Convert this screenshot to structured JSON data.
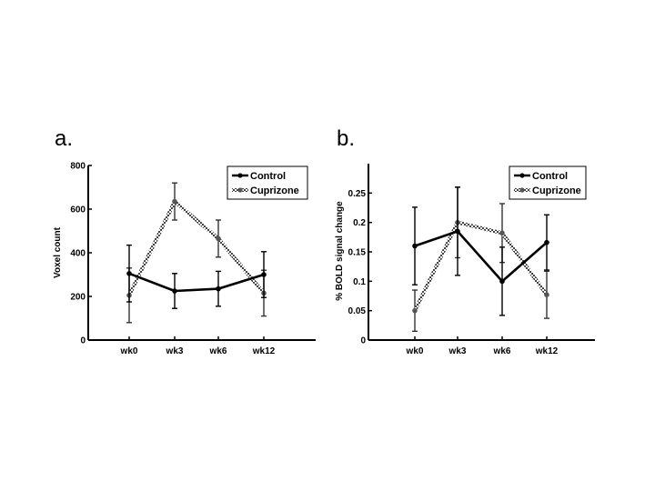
{
  "chart_data": [
    {
      "panel_label": "a.",
      "type": "line",
      "categories": [
        "wk0",
        "wk3",
        "wk6",
        "wk12"
      ],
      "ylabel": "Voxel count",
      "xlabel": "",
      "ylim": [
        0,
        800
      ],
      "yticks": [
        0,
        200,
        400,
        600,
        800
      ],
      "ytick_labels": [
        "0",
        "200",
        "400",
        "600",
        "800"
      ],
      "legend_position": "top-right",
      "series": [
        {
          "name": "Control",
          "style": "solid",
          "color": "#000000",
          "values": [
            305,
            225,
            235,
            300
          ],
          "errors": [
            130,
            80,
            80,
            105
          ]
        },
        {
          "name": "Cuprizone",
          "style": "dotted",
          "color": "#555555",
          "values": [
            205,
            635,
            465,
            215
          ],
          "errors": [
            125,
            85,
            85,
            105
          ]
        }
      ]
    },
    {
      "panel_label": "b.",
      "type": "line",
      "categories": [
        "wk0",
        "wk3",
        "wk6",
        "wk12"
      ],
      "ylabel": "% BOLD signal change",
      "xlabel": "",
      "ylim": [
        0,
        0.3
      ],
      "yticks": [
        0,
        0.05,
        0.1,
        0.15,
        0.2,
        0.25
      ],
      "ytick_labels": [
        "0",
        "0.05",
        "0.1",
        "0.15",
        "0.2",
        "0.25"
      ],
      "legend_position": "top-right",
      "series": [
        {
          "name": "Control",
          "style": "solid",
          "color": "#000000",
          "values": [
            0.16,
            0.185,
            0.1,
            0.166
          ],
          "errors": [
            0.066,
            0.075,
            0.058,
            0.047
          ]
        },
        {
          "name": "Cuprizone",
          "style": "dotted",
          "color": "#555555",
          "values": [
            0.05,
            0.2,
            0.182,
            0.077
          ],
          "errors": [
            0.035,
            0.06,
            0.05,
            0.04
          ]
        }
      ]
    }
  ]
}
